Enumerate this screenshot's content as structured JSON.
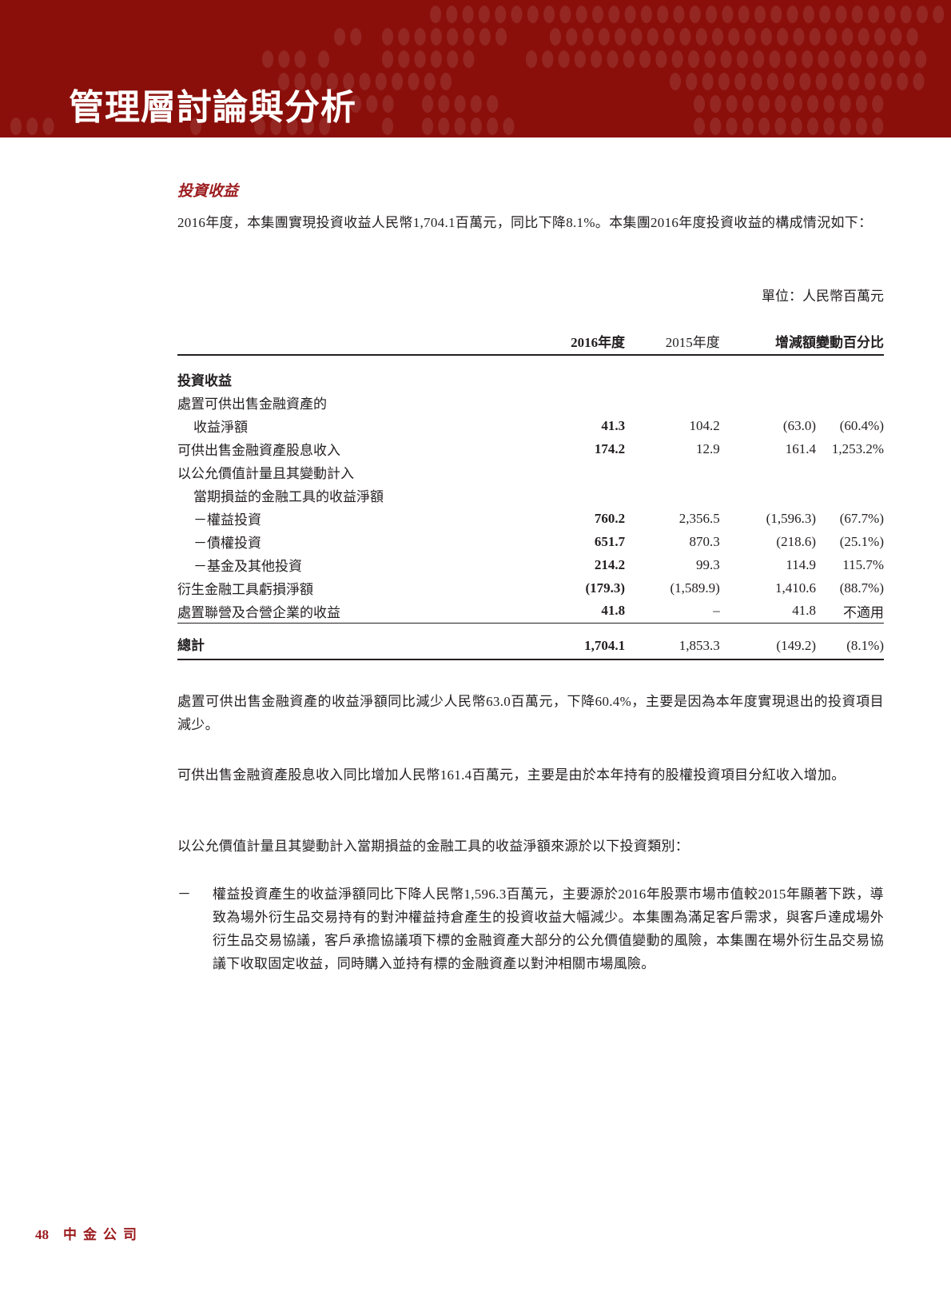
{
  "header": {
    "title": "管理層討論與分析",
    "background_color": "#8a0f0b"
  },
  "section_title": "投資收益",
  "intro": "2016年度，本集團實現投資收益人民幣1,704.1百萬元，同比下降8.1%。本集團2016年度投資收益的構成情況如下：",
  "unit": "單位：人民幣百萬元",
  "table": {
    "columns": [
      "",
      "2016年度",
      "2015年度",
      "增減額",
      "變動百分比"
    ],
    "rows": [
      {
        "label": "投資收益",
        "bold": true,
        "values": [
          "",
          "",
          "",
          ""
        ]
      },
      {
        "label": "處置可供出售金融資產的",
        "values": [
          "",
          "",
          "",
          ""
        ]
      },
      {
        "label": "收益淨額",
        "indent": true,
        "values": [
          "41.3",
          "104.2",
          "(63.0)",
          "(60.4%)"
        ]
      },
      {
        "label": "可供出售金融資產股息收入",
        "values": [
          "174.2",
          "12.9",
          "161.4",
          "1,253.2%"
        ]
      },
      {
        "label": "以公允價值計量且其變動計入",
        "values": [
          "",
          "",
          "",
          ""
        ]
      },
      {
        "label": "當期損益的金融工具的收益淨額",
        "indent": true,
        "values": [
          "",
          "",
          "",
          ""
        ]
      },
      {
        "label": "－權益投資",
        "indent": true,
        "values": [
          "760.2",
          "2,356.5",
          "(1,596.3)",
          "(67.7%)"
        ]
      },
      {
        "label": "－債權投資",
        "indent": true,
        "values": [
          "651.7",
          "870.3",
          "(218.6)",
          "(25.1%)"
        ]
      },
      {
        "label": "－基金及其他投資",
        "indent": true,
        "values": [
          "214.2",
          "99.3",
          "114.9",
          "115.7%"
        ]
      },
      {
        "label": "衍生金融工具虧損淨額",
        "values": [
          "(179.3)",
          "(1,589.9)",
          "1,410.6",
          "(88.7%)"
        ]
      },
      {
        "label": "處置聯營及合營企業的收益",
        "values": [
          "41.8",
          "–",
          "41.8",
          "不適用"
        ]
      }
    ],
    "total": {
      "label": "總計",
      "values": [
        "1,704.1",
        "1,853.3",
        "(149.2)",
        "(8.1%)"
      ]
    }
  },
  "paragraphs": [
    "處置可供出售金融資產的收益淨額同比減少人民幣63.0百萬元，下降60.4%，主要是因為本年度實現退出的投資項目減少。",
    "可供出售金融資產股息收入同比增加人民幣161.4百萬元，主要是由於本年持有的股權投資項目分紅收入增加。",
    "以公允價值計量且其變動計入當期損益的金融工具的收益淨額來源於以下投資類別："
  ],
  "bullet": {
    "marker": "－",
    "text": "權益投資產生的收益淨額同比下降人民幣1,596.3百萬元，主要源於2016年股票市場市值較2015年顯著下跌，導致為場外衍生品交易持有的對沖權益持倉產生的投資收益大幅減少。本集團為滿足客戶需求，與客戶達成場外衍生品交易協議，客戶承擔協議項下標的金融資產大部分的公允價值變動的風險，本集團在場外衍生品交易協議下收取固定收益，同時購入並持有標的金融資產以對沖相關市場風險。"
  },
  "footer": {
    "page_number": "48",
    "company": "中金公司"
  }
}
